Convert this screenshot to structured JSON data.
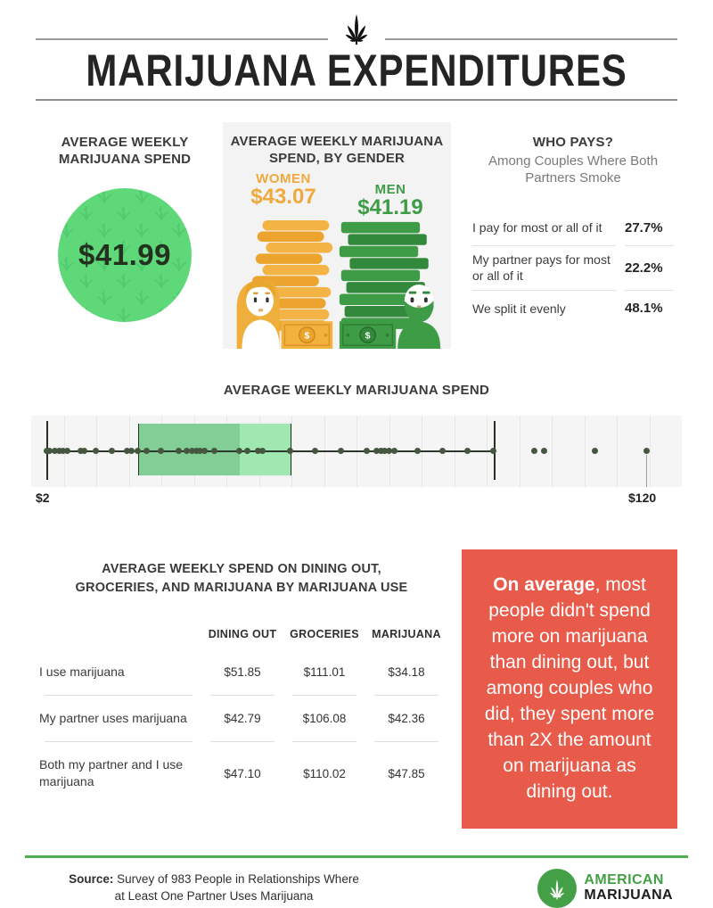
{
  "header": {
    "title": "MARIJUANA EXPENDITURES",
    "leaf_icon": "marijuana-leaf-icon"
  },
  "stats": {
    "weekly_spend": {
      "heading": "AVERAGE WEEKLY MARIJUANA SPEND",
      "value": "$41.99",
      "circle_color": "#5fd87a"
    },
    "by_gender": {
      "heading": "AVERAGE WEEKLY MARIJUANA SPEND, BY GENDER",
      "women_label": "WOMEN",
      "women_value": "$43.07",
      "men_label": "MEN",
      "men_value": "$41.19",
      "women_color": "#efa93c",
      "men_color": "#3f9c46",
      "currency_symbol": "$"
    },
    "who_pays": {
      "heading": "WHO PAYS?",
      "subheading": "Among Couples Where Both Partners Smoke",
      "rows": [
        {
          "label": "I pay for most or all of it",
          "value": "27.7%"
        },
        {
          "label": "My partner pays for most or all of it",
          "value": "22.2%"
        },
        {
          "label": "We split it evenly",
          "value": "48.1%"
        }
      ]
    }
  },
  "chart_data": {
    "type": "boxplot",
    "title": "AVERAGE WEEKLY MARIJUANA SPEND",
    "orientation": "horizontal",
    "axis": {
      "min": 2,
      "max": 120,
      "min_label": "$2",
      "max_label": "$120"
    },
    "box": {
      "q1": 20,
      "median": 40,
      "q3": 50,
      "whisker_low": 2,
      "whisker_high": 90
    },
    "points": [
      2,
      2.7,
      3.6,
      4.5,
      5.3,
      6.2,
      8.7,
      9.5,
      11.8,
      14.8,
      17.8,
      18.8,
      20,
      21.8,
      24.6,
      28,
      29.7,
      30.6,
      31.5,
      32.2,
      33.2,
      35,
      40,
      41.6,
      43.7,
      44.6,
      50,
      54.8,
      60,
      65.1,
      66.9,
      67.8,
      68.6,
      69.5,
      70.4,
      75.1,
      80,
      84.9,
      90,
      98,
      100,
      110,
      120
    ],
    "layout": {
      "grid": true,
      "gridline_count": 19
    },
    "colors": {
      "box_lower": "#82ce96",
      "box_upper": "#9fe8b1",
      "point": "#46573f",
      "line": "#25321f",
      "background": "#f5f5f5"
    }
  },
  "spend_table": {
    "title": "AVERAGE WEEKLY SPEND ON DINING OUT, GROCERIES, AND MARIJUANA BY MARIJUANA USE",
    "columns": [
      "DINING OUT",
      "GROCERIES",
      "MARIJUANA"
    ],
    "rows": [
      {
        "label": "I use marijuana",
        "values": [
          "$51.85",
          "$111.01",
          "$34.18"
        ]
      },
      {
        "label": "My partner uses marijuana",
        "values": [
          "$42.79",
          "$106.08",
          "$42.36"
        ]
      },
      {
        "label": "Both my partner and I use marijuana",
        "values": [
          "$47.10",
          "$110.02",
          "$47.85"
        ]
      }
    ]
  },
  "callout": {
    "bold": "On average",
    "rest": ", most people didn't spend more on marijuana than dining out, but among couples who did, they spent more than 2X the amount on marijuana as dining out.",
    "background": "#e85a49"
  },
  "footer": {
    "source_label": "Source:",
    "source_line1": " Survey of 983 People in Relationships Where",
    "source_line2": "at Least One Partner Uses Marijuana",
    "brand_line1": "AMERICAN",
    "brand_line2": "MARIJUANA",
    "accent_color": "#4caf50"
  }
}
